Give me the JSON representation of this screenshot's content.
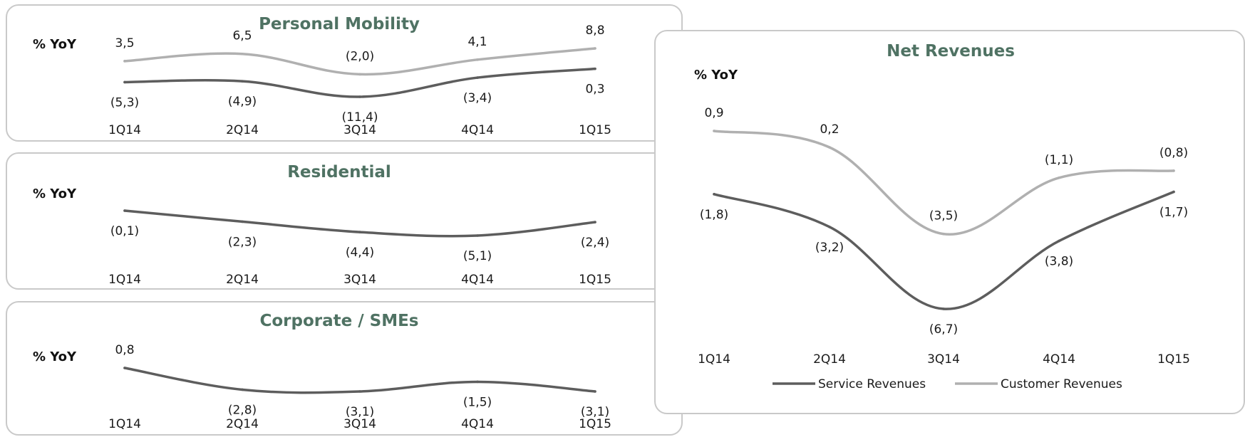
{
  "colors": {
    "title": "#4f7263",
    "service": "#5d5d5d",
    "customer": "#b0b0b0",
    "border": "#c9c9c9"
  },
  "chart_data": [
    {
      "id": "mobility",
      "type": "line",
      "title": "Personal Mobility",
      "ylabel": "% YoY",
      "categories": [
        "1Q14",
        "2Q14",
        "3Q14",
        "4Q14",
        "1Q15"
      ],
      "series": [
        {
          "key": "customer",
          "values": [
            3.5,
            6.5,
            -2.0,
            4.1,
            8.8
          ],
          "labels": [
            "3,5",
            "6,5",
            "(2,0)",
            "4,1",
            "8,8"
          ]
        },
        {
          "key": "service",
          "values": [
            -5.3,
            -4.9,
            -11.4,
            -3.4,
            0.3
          ],
          "labels": [
            "(5,3)",
            "(4,9)",
            "(11,4)",
            "(3,4)",
            "0,3"
          ]
        }
      ]
    },
    {
      "id": "residential",
      "type": "line",
      "title": "Residential",
      "ylabel": "% YoY",
      "categories": [
        "1Q14",
        "2Q14",
        "3Q14",
        "4Q14",
        "1Q15"
      ],
      "series": [
        {
          "key": "service",
          "values": [
            -0.1,
            -2.3,
            -4.4,
            -5.1,
            -2.4
          ],
          "labels": [
            "(0,1)",
            "(2,3)",
            "(4,4)",
            "(5,1)",
            "(2,4)"
          ]
        }
      ]
    },
    {
      "id": "corporate",
      "type": "line",
      "title": "Corporate / SMEs",
      "ylabel": "% YoY",
      "categories": [
        "1Q14",
        "2Q14",
        "3Q14",
        "4Q14",
        "1Q15"
      ],
      "series": [
        {
          "key": "service",
          "values": [
            0.8,
            -2.8,
            -3.1,
            -1.5,
            -3.1
          ],
          "labels": [
            "0,8",
            "(2,8)",
            "(3,1)",
            "(1,5)",
            "(3,1)"
          ]
        }
      ]
    },
    {
      "id": "net",
      "type": "line",
      "title": "Net Revenues",
      "ylabel": "% YoY",
      "categories": [
        "1Q14",
        "2Q14",
        "3Q14",
        "4Q14",
        "1Q15"
      ],
      "legend_position": "bottom",
      "series": [
        {
          "key": "service",
          "name": "Service Revenues",
          "values": [
            -1.8,
            -3.2,
            -6.7,
            -3.8,
            -1.7
          ],
          "labels": [
            "(1,8)",
            "(3,2)",
            "(6,7)",
            "(3,8)",
            "(1,7)"
          ]
        },
        {
          "key": "customer",
          "name": "Customer Revenues",
          "values": [
            0.9,
            0.2,
            -3.5,
            -1.1,
            -0.8
          ],
          "labels": [
            "0,9",
            "0,2",
            "(3,5)",
            "(1,1)",
            "(0,8)"
          ]
        }
      ]
    }
  ]
}
